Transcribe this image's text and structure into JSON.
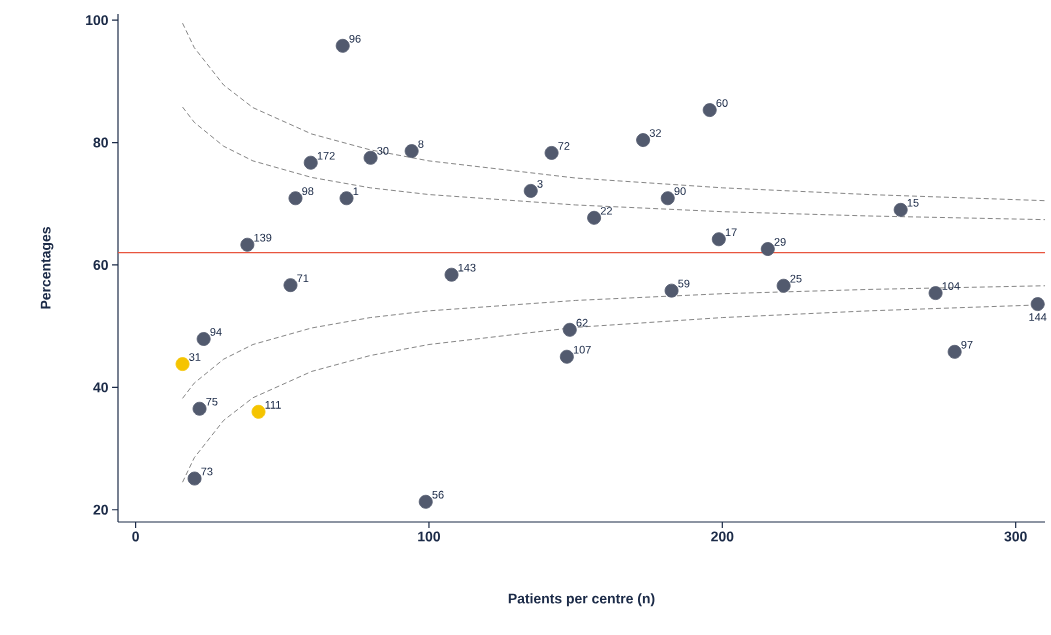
{
  "chart_data": {
    "type": "scatter",
    "xlabel": "Patients per centre (n)",
    "ylabel": "Percentages",
    "xlim": [
      -6,
      310
    ],
    "ylim": [
      18,
      101
    ],
    "xticks": [
      0,
      100,
      200,
      300
    ],
    "yticks": [
      20,
      40,
      60,
      80,
      100
    ],
    "grid": false,
    "series": [
      {
        "marker": "circle",
        "color": "#525a6e",
        "x": [
          70.6,
          195.7,
          173,
          94.1,
          59.7,
          80.1,
          141.8,
          134.7,
          181.4,
          54.5,
          71.9,
          260.8,
          156.3,
          198.8,
          215.5,
          38.1,
          107.7,
          52.8,
          182.7,
          220.9,
          272.7,
          307.5,
          23.2,
          148,
          147,
          279.2,
          21.8,
          20.1,
          98.9
        ],
        "values": [
          95.8,
          85.3,
          80.4,
          78.6,
          76.7,
          77.5,
          78.3,
          72.1,
          70.9,
          70.9,
          70.9,
          69,
          67.7,
          64.2,
          62.6,
          63.3,
          58.4,
          56.7,
          55.8,
          56.6,
          55.4,
          53.6,
          47.9,
          49.4,
          45.0,
          45.8,
          36.5,
          25.1,
          21.3
        ]
      },
      {
        "marker": "circle",
        "color": "#f5c400",
        "x": [
          16,
          41.9
        ],
        "values": [
          43.8,
          36.0
        ]
      },
      {
        "type": "line",
        "marker": "none",
        "line_style": "dashed",
        "color": "#777777",
        "x": [
          16,
          20,
          30,
          40,
          60,
          80,
          100,
          150,
          200,
          250,
          310
        ],
        "values": [
          99.5,
          95.5,
          89.4,
          85.7,
          81.4,
          78.8,
          77.0,
          74.2,
          72.6,
          71.5,
          70.5
        ]
      },
      {
        "type": "line",
        "marker": "none",
        "line_style": "dashed",
        "color": "#777777",
        "x": [
          16,
          20,
          30,
          40,
          60,
          80,
          100,
          150,
          200,
          250,
          310
        ],
        "values": [
          85.8,
          83.3,
          79.4,
          77.0,
          74.3,
          72.6,
          71.5,
          69.8,
          68.7,
          68.0,
          67.4
        ]
      },
      {
        "type": "line",
        "marker": "none",
        "line_style": "dashed",
        "color": "#777777",
        "x": [
          16,
          20,
          30,
          40,
          60,
          80,
          100,
          150,
          200,
          250,
          310
        ],
        "values": [
          38.2,
          40.7,
          44.6,
          47.0,
          49.7,
          51.4,
          52.5,
          54.2,
          55.3,
          56.0,
          56.6
        ]
      },
      {
        "type": "line",
        "marker": "none",
        "line_style": "dashed",
        "color": "#777777",
        "x": [
          16,
          20,
          30,
          40,
          60,
          80,
          100,
          150,
          200,
          250,
          310
        ],
        "values": [
          24.5,
          28.5,
          34.6,
          38.3,
          42.6,
          45.2,
          47.0,
          49.8,
          51.4,
          52.5,
          53.5
        ]
      }
    ],
    "ref_lines": [
      {
        "axis": "y",
        "value": 62,
        "color": "#e8553e"
      }
    ],
    "annotations": [
      {
        "text": "96",
        "x": 70.6,
        "y": 95.8
      },
      {
        "text": "60",
        "x": 195.7,
        "y": 85.3
      },
      {
        "text": "32",
        "x": 173,
        "y": 80.4
      },
      {
        "text": "8",
        "x": 94.1,
        "y": 78.6
      },
      {
        "text": "172",
        "x": 59.7,
        "y": 76.7
      },
      {
        "text": "30",
        "x": 80.1,
        "y": 77.5
      },
      {
        "text": "72",
        "x": 141.8,
        "y": 78.3
      },
      {
        "text": "3",
        "x": 134.7,
        "y": 72.1
      },
      {
        "text": "90",
        "x": 181.4,
        "y": 70.9
      },
      {
        "text": "98",
        "x": 54.5,
        "y": 70.9
      },
      {
        "text": "1",
        "x": 71.9,
        "y": 70.9
      },
      {
        "text": "15",
        "x": 260.8,
        "y": 69
      },
      {
        "text": "22",
        "x": 156.3,
        "y": 67.7
      },
      {
        "text": "17",
        "x": 198.8,
        "y": 64.2
      },
      {
        "text": "29",
        "x": 215.5,
        "y": 62.6
      },
      {
        "text": "139",
        "x": 38.1,
        "y": 63.3
      },
      {
        "text": "143",
        "x": 107.7,
        "y": 58.4
      },
      {
        "text": "71",
        "x": 52.8,
        "y": 56.7
      },
      {
        "text": "59",
        "x": 182.7,
        "y": 55.8
      },
      {
        "text": "25",
        "x": 220.9,
        "y": 56.6
      },
      {
        "text": "104",
        "x": 272.7,
        "y": 55.4
      },
      {
        "text": "144",
        "x": 307.5,
        "y": 53.6
      },
      {
        "text": "94",
        "x": 23.2,
        "y": 47.9
      },
      {
        "text": "62",
        "x": 148,
        "y": 49.4
      },
      {
        "text": "107",
        "x": 147,
        "y": 45.0
      },
      {
        "text": "97",
        "x": 279.2,
        "y": 45.8
      },
      {
        "text": "75",
        "x": 21.8,
        "y": 36.5
      },
      {
        "text": "73",
        "x": 20.1,
        "y": 25.1
      },
      {
        "text": "56",
        "x": 98.9,
        "y": 21.3
      },
      {
        "text": "31",
        "x": 16,
        "y": 43.8
      },
      {
        "text": "111",
        "x": 41.9,
        "y": 36.0
      }
    ]
  }
}
